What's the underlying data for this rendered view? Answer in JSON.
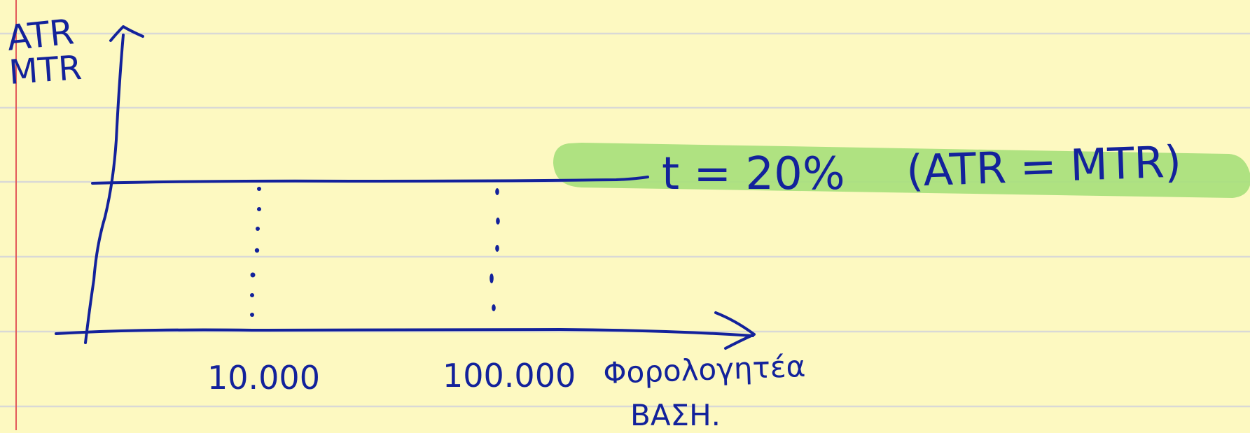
{
  "colors": {
    "paper": "#fdf9c1",
    "rule_line": "#d6d6d6",
    "margin_line": "#e25a5a",
    "ink": "#13229b",
    "highlight": "#a8df7c"
  },
  "labels": {
    "y_axis_label_line1": "ATR",
    "y_axis_label_line2": "MTR",
    "rate_label": "t = 20%",
    "rate_note": "(ATR = MTR)",
    "x_tick_1": "10.000",
    "x_tick_2": "100.000",
    "x_axis_label_line1": "Φορολογητέα",
    "x_axis_label_line2": "ΒΑΣΗ."
  }
}
